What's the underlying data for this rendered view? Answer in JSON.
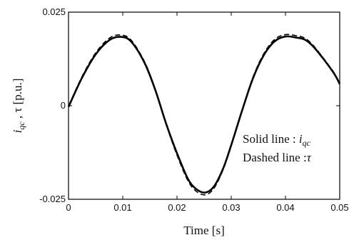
{
  "chart_data": {
    "type": "line",
    "title": "",
    "xlabel": "Time [s]",
    "ylabel": "i_qc , τ [p.u.]",
    "ylabel_parts": {
      "main": "i",
      "sub": "qc",
      "rest": " , τ [p.u.]"
    },
    "xlim": [
      0,
      0.05
    ],
    "ylim": [
      -0.025,
      0.025
    ],
    "x_ticks": [
      0,
      0.01,
      0.02,
      0.03,
      0.04,
      0.05
    ],
    "x_tick_labels": [
      "0",
      "0.01",
      "0.02",
      "0.03",
      "0.04",
      "0.05"
    ],
    "y_ticks": [
      -0.025,
      0,
      0.025
    ],
    "y_tick_labels": [
      "-0.025",
      "0",
      "0.025"
    ],
    "grid": false,
    "annotations": {
      "solid": {
        "prefix": "Solid line : ",
        "main": "i",
        "sub": "qc"
      },
      "dashed": {
        "prefix": "Dashed line :",
        "symbol": "τ"
      }
    },
    "series": [
      {
        "style": "solid",
        "x": [
          0,
          0.0025,
          0.005,
          0.0075,
          0.0095,
          0.0115,
          0.014,
          0.016,
          0.018,
          0.02,
          0.022,
          0.0235,
          0.0252,
          0.0268,
          0.0285,
          0.03,
          0.032,
          0.034,
          0.036,
          0.038,
          0.04,
          0.042,
          0.0435,
          0.045,
          0.047,
          0.049,
          0.05
        ],
        "values": [
          -0.0003,
          0.0075,
          0.0137,
          0.0175,
          0.0184,
          0.0172,
          0.0115,
          0.0042,
          -0.0048,
          -0.0127,
          -0.0195,
          -0.0222,
          -0.0232,
          -0.0216,
          -0.0168,
          -0.0105,
          -0.0013,
          0.0073,
          0.0135,
          0.0172,
          0.0185,
          0.0182,
          0.0177,
          0.016,
          0.0125,
          0.0085,
          0.0058
        ]
      },
      {
        "style": "dashed",
        "x": [
          0,
          0.0025,
          0.005,
          0.0075,
          0.0095,
          0.0115,
          0.014,
          0.016,
          0.018,
          0.02,
          0.022,
          0.0235,
          0.0252,
          0.0268,
          0.0285,
          0.03,
          0.032,
          0.034,
          0.036,
          0.038,
          0.04,
          0.042,
          0.0435,
          0.045,
          0.047,
          0.049,
          0.05
        ],
        "values": [
          -0.0001,
          0.0078,
          0.0141,
          0.018,
          0.0189,
          0.0176,
          0.0118,
          0.0044,
          -0.005,
          -0.0132,
          -0.02,
          -0.0228,
          -0.0238,
          -0.0221,
          -0.0171,
          -0.0107,
          -0.0012,
          0.0076,
          0.0139,
          0.0177,
          0.019,
          0.0187,
          0.0181,
          0.0163,
          0.0127,
          0.0087,
          0.006
        ]
      }
    ]
  }
}
